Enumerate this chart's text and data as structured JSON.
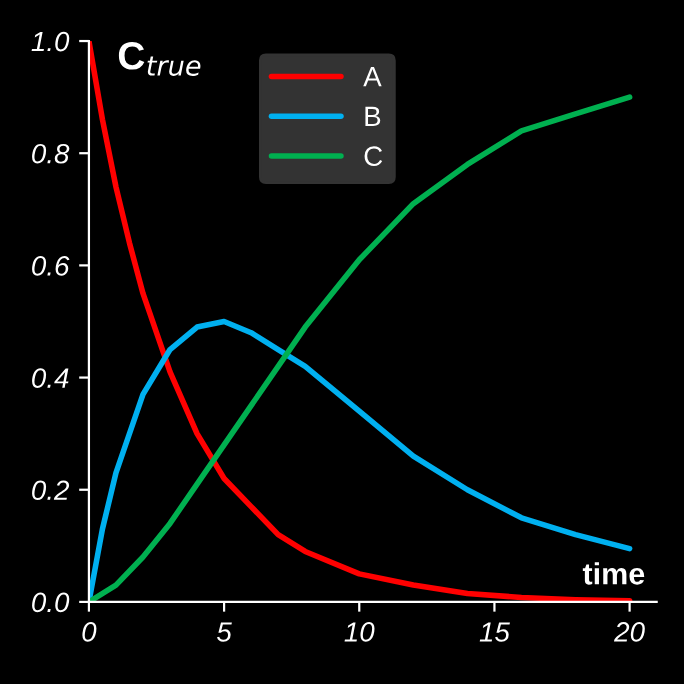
{
  "chart_data": {
    "type": "line",
    "xlabel": "time",
    "ylabel": "C$_{true}$",
    "xlim": [
      0,
      21
    ],
    "ylim": [
      0,
      1
    ],
    "xticks": [
      0,
      5,
      10,
      15,
      20
    ],
    "yticks": [
      {
        "value": 0,
        "label": "0.0"
      },
      {
        "value": 0.2,
        "label": "0.2"
      },
      {
        "value": 0.4,
        "label": "0.4"
      },
      {
        "value": 0.6,
        "label": "0.6"
      },
      {
        "value": 0.8,
        "label": "0.8"
      },
      {
        "value": 1,
        "label": "1.0"
      }
    ],
    "grid": false,
    "legend": "top",
    "marker": "none",
    "line_style": "solid",
    "series": [
      {
        "name": "A",
        "color": "#ff0000",
        "x": [
          0,
          0.5,
          1,
          1.5,
          2,
          3,
          4,
          5,
          6,
          7,
          8,
          10,
          12,
          14,
          16,
          18,
          20
        ],
        "values": [
          1,
          0.86,
          0.74,
          0.64,
          0.55,
          0.41,
          0.3,
          0.22,
          0.17,
          0.12,
          0.09,
          0.05,
          0.03,
          0.015,
          0.008,
          0.004,
          0.002
        ]
      },
      {
        "name": "B",
        "color": "#00b0f0",
        "x": [
          0,
          0.5,
          1,
          2,
          3,
          4,
          5,
          6,
          7,
          8,
          10,
          12,
          14,
          16,
          18,
          20
        ],
        "values": [
          0,
          0.13,
          0.23,
          0.37,
          0.45,
          0.49,
          0.5,
          0.48,
          0.45,
          0.42,
          0.34,
          0.26,
          0.2,
          0.15,
          0.12,
          0.095
        ]
      },
      {
        "name": "C",
        "color": "#00b050",
        "x": [
          0,
          1,
          2,
          3,
          4,
          5,
          6,
          7,
          8,
          10,
          12,
          14,
          16,
          18,
          20
        ],
        "values": [
          0,
          0.03,
          0.08,
          0.14,
          0.21,
          0.28,
          0.35,
          0.42,
          0.49,
          0.61,
          0.71,
          0.78,
          0.84,
          0.87,
          0.9
        ]
      }
    ]
  }
}
